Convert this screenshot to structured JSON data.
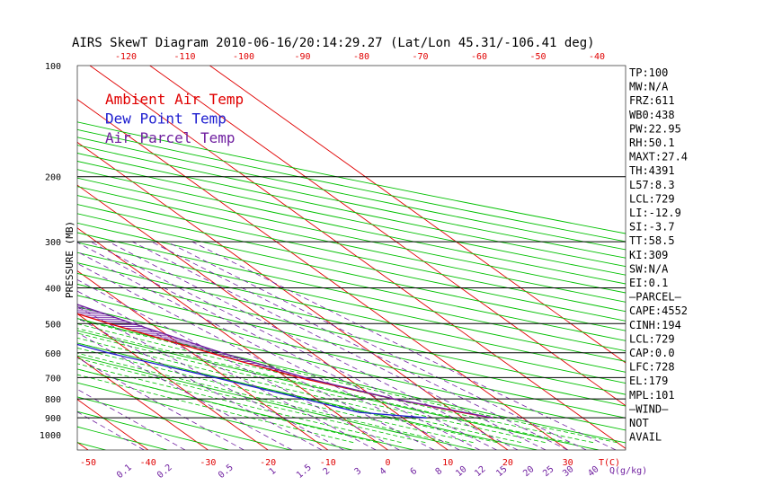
{
  "chart_data": {
    "type": "line",
    "title": "AIRS SkewT Diagram 2010-06-16/20:14:29.27 (Lat/Lon 45.31/-106.41 deg)",
    "ylabel": "PRESSURE (MB)",
    "pressure_ticks": [
      100,
      200,
      300,
      400,
      500,
      600,
      700,
      800,
      900,
      1000
    ],
    "top_temp_ticks": [
      "-120",
      "-110",
      "-100",
      "-90",
      "-80",
      "-70",
      "-60",
      "-50",
      "-40"
    ],
    "bottom_temp_ticks": [
      "-50",
      "-40",
      "-30",
      "-20",
      "-10",
      "0",
      "10",
      "20",
      "30",
      "T(C)"
    ],
    "mixing_ratio_labels": [
      "0.1",
      "0.2",
      "0.5",
      "1",
      "1.5",
      "2",
      "3",
      "4",
      "6",
      "8",
      "10",
      "12",
      "15",
      "20",
      "25",
      "30",
      "40",
      "Q(g/kg)"
    ],
    "legend": [
      {
        "name": "Ambient Air Temp",
        "color": "#e00000"
      },
      {
        "name": "Dew Point Temp",
        "color": "#2020d0"
      },
      {
        "name": "Air Parcel Temp",
        "color": "#7020a0"
      }
    ],
    "series": [
      {
        "name": "Ambient Air Temp",
        "color": "#e00000",
        "points": [
          [
            100,
            -55
          ],
          [
            130,
            -58
          ],
          [
            160,
            -62
          ],
          [
            200,
            -58
          ],
          [
            230,
            -54
          ],
          [
            260,
            -46
          ],
          [
            300,
            -40
          ],
          [
            400,
            -28
          ],
          [
            500,
            -17
          ],
          [
            600,
            -7
          ],
          [
            700,
            2
          ],
          [
            800,
            13
          ],
          [
            870,
            21
          ],
          [
            900,
            25
          ]
        ]
      },
      {
        "name": "Dew Point Temp",
        "color": "#2020d0",
        "points": [
          [
            100,
            -84
          ],
          [
            130,
            -96
          ],
          [
            160,
            -92
          ],
          [
            200,
            -85
          ],
          [
            250,
            -78
          ],
          [
            300,
            -68
          ],
          [
            400,
            -48
          ],
          [
            500,
            -35
          ],
          [
            600,
            -24
          ],
          [
            700,
            -12
          ],
          [
            800,
            -2
          ],
          [
            870,
            4
          ],
          [
            900,
            14
          ]
        ]
      },
      {
        "name": "Air Parcel Temp",
        "color": "#7020a0",
        "points": [
          [
            100,
            -84
          ],
          [
            150,
            -67
          ],
          [
            180,
            -60
          ],
          [
            200,
            -52
          ],
          [
            250,
            -42
          ],
          [
            300,
            -34
          ],
          [
            400,
            -22
          ],
          [
            500,
            -13
          ],
          [
            600,
            -5
          ],
          [
            700,
            3
          ],
          [
            730,
            6
          ],
          [
            800,
            13
          ],
          [
            900,
            25
          ]
        ]
      }
    ],
    "indices": [
      "TP:100",
      "MW:N/A",
      "FRZ:611",
      "WB0:438",
      "PW:22.95",
      "RH:50.1",
      "MAXT:27.4",
      "TH:4391",
      "L57:8.3",
      "LCL:729",
      "LI:-12.9",
      "SI:-3.7",
      "TT:58.5",
      "KI:309",
      "SW:N/A",
      "EI:0.1",
      "—PARCEL—",
      "CAPE:4552",
      "CINH:194",
      "LCL:729",
      "CAP:0.0",
      "LFC:728",
      "EL:179",
      "MPL:101",
      "—WIND—",
      "NOT",
      "AVAIL"
    ]
  },
  "colors": {
    "isotherm": "#e00000",
    "dry_adiabat": "#00c000",
    "moist_adiabat": "#00c000",
    "mixing_ratio": "#7020a0",
    "isobar": "#000000"
  }
}
